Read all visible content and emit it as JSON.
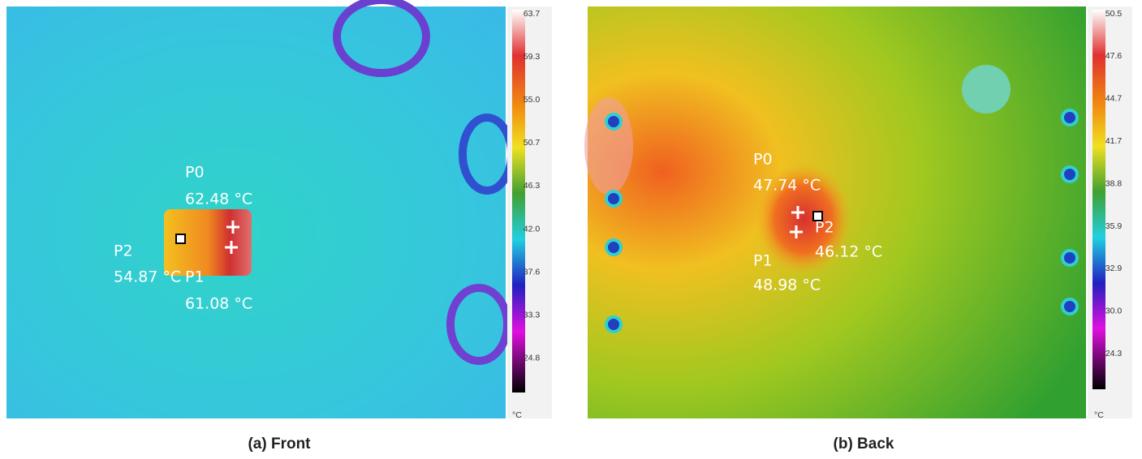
{
  "panels": [
    {
      "caption": "(a) Front",
      "scale": {
        "labels": [
          "63.7",
          "59.3",
          "55.0",
          "50.7",
          "46.3",
          "42.0",
          "37.6",
          "33.3",
          "24.8"
        ],
        "unit": "°C"
      },
      "points": [
        {
          "name": "P0",
          "temp": "62.48 °C"
        },
        {
          "name": "P1",
          "temp": "61.08 °C"
        },
        {
          "name": "P2",
          "temp": "54.87 °C"
        }
      ]
    },
    {
      "caption": "(b) Back",
      "scale": {
        "labels": [
          "50.5",
          "47.6",
          "44.7",
          "41.7",
          "38.8",
          "35.9",
          "32.9",
          "30.0",
          "24.3"
        ],
        "unit": "°C"
      },
      "points": [
        {
          "name": "P0",
          "temp": "47.74 °C"
        },
        {
          "name": "P1",
          "temp": "48.98 °C"
        },
        {
          "name": "P2",
          "temp": "46.12 °C"
        }
      ]
    }
  ]
}
